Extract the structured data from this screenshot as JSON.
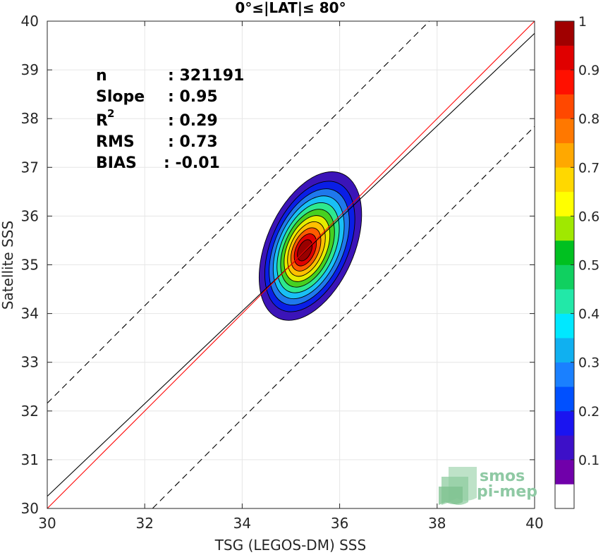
{
  "chart_data": {
    "type": "contour",
    "title": "0°≤|LAT|≤ 80°",
    "xlabel": "TSG (LEGOS-DM) SSS",
    "ylabel": "Satellite SSS",
    "xlim": [
      30,
      40
    ],
    "ylim": [
      30,
      40
    ],
    "x_ticks": [
      30,
      32,
      34,
      36,
      38,
      40
    ],
    "y_ticks": [
      30,
      31,
      32,
      33,
      34,
      35,
      36,
      37,
      38,
      39,
      40
    ],
    "grid": true,
    "stats": [
      {
        "label": "n",
        "value": ": 321191"
      },
      {
        "label": "Slope",
        "value": ": 0.95"
      },
      {
        "label": "R",
        "sup": "2",
        "value": ": 0.29"
      },
      {
        "label": "RMS",
        "value": ": 0.73"
      },
      {
        "label": "BIAS",
        "value": ": -0.01"
      }
    ],
    "lines": {
      "identity": {
        "slope": 1.0,
        "intercept": 0.0,
        "color": "#ff0000"
      },
      "fit": {
        "slope": 0.95,
        "intercept": 1.75,
        "color": "#000000"
      },
      "bounds": [
        {
          "slope": 1.0,
          "intercept": 2.16,
          "style": "dashed"
        },
        {
          "slope": 1.0,
          "intercept": -2.16,
          "style": "dashed"
        }
      ]
    },
    "density_peak": {
      "x": 35.4,
      "y": 35.4
    },
    "contour_levels": [
      0.05,
      0.15,
      0.25,
      0.35,
      0.45,
      0.55,
      0.65,
      0.75,
      0.85,
      0.95
    ],
    "contour_colors": [
      "#3b14b8",
      "#0a1ee6",
      "#1f78ec",
      "#19c0f5",
      "#2ee88e",
      "#46d020",
      "#e6ec00",
      "#ffc000",
      "#ff5a00",
      "#e00000",
      "#990000"
    ],
    "colorbar": {
      "ticks": [
        0.1,
        0.2,
        0.3,
        0.4,
        0.5,
        0.6,
        0.7,
        0.8,
        0.9,
        1
      ],
      "tick_labels": [
        "0.1",
        "0.2",
        "0.3",
        "0.4",
        "0.5",
        "0.6",
        "0.7",
        "0.8",
        "0.9",
        "1"
      ],
      "colors": [
        "#ffffff",
        "#7000aa",
        "#3d10c8",
        "#1a14f0",
        "#0050ff",
        "#1a80ff",
        "#10b0f0",
        "#00e8ff",
        "#22e8a8",
        "#10d060",
        "#00c020",
        "#a0e800",
        "#ffff00",
        "#ffd800",
        "#ffa800",
        "#ff7800",
        "#ff4800",
        "#ff1000",
        "#e00000",
        "#a00000"
      ]
    },
    "logo": {
      "line1": "smos",
      "line2": "pi-mep"
    }
  }
}
